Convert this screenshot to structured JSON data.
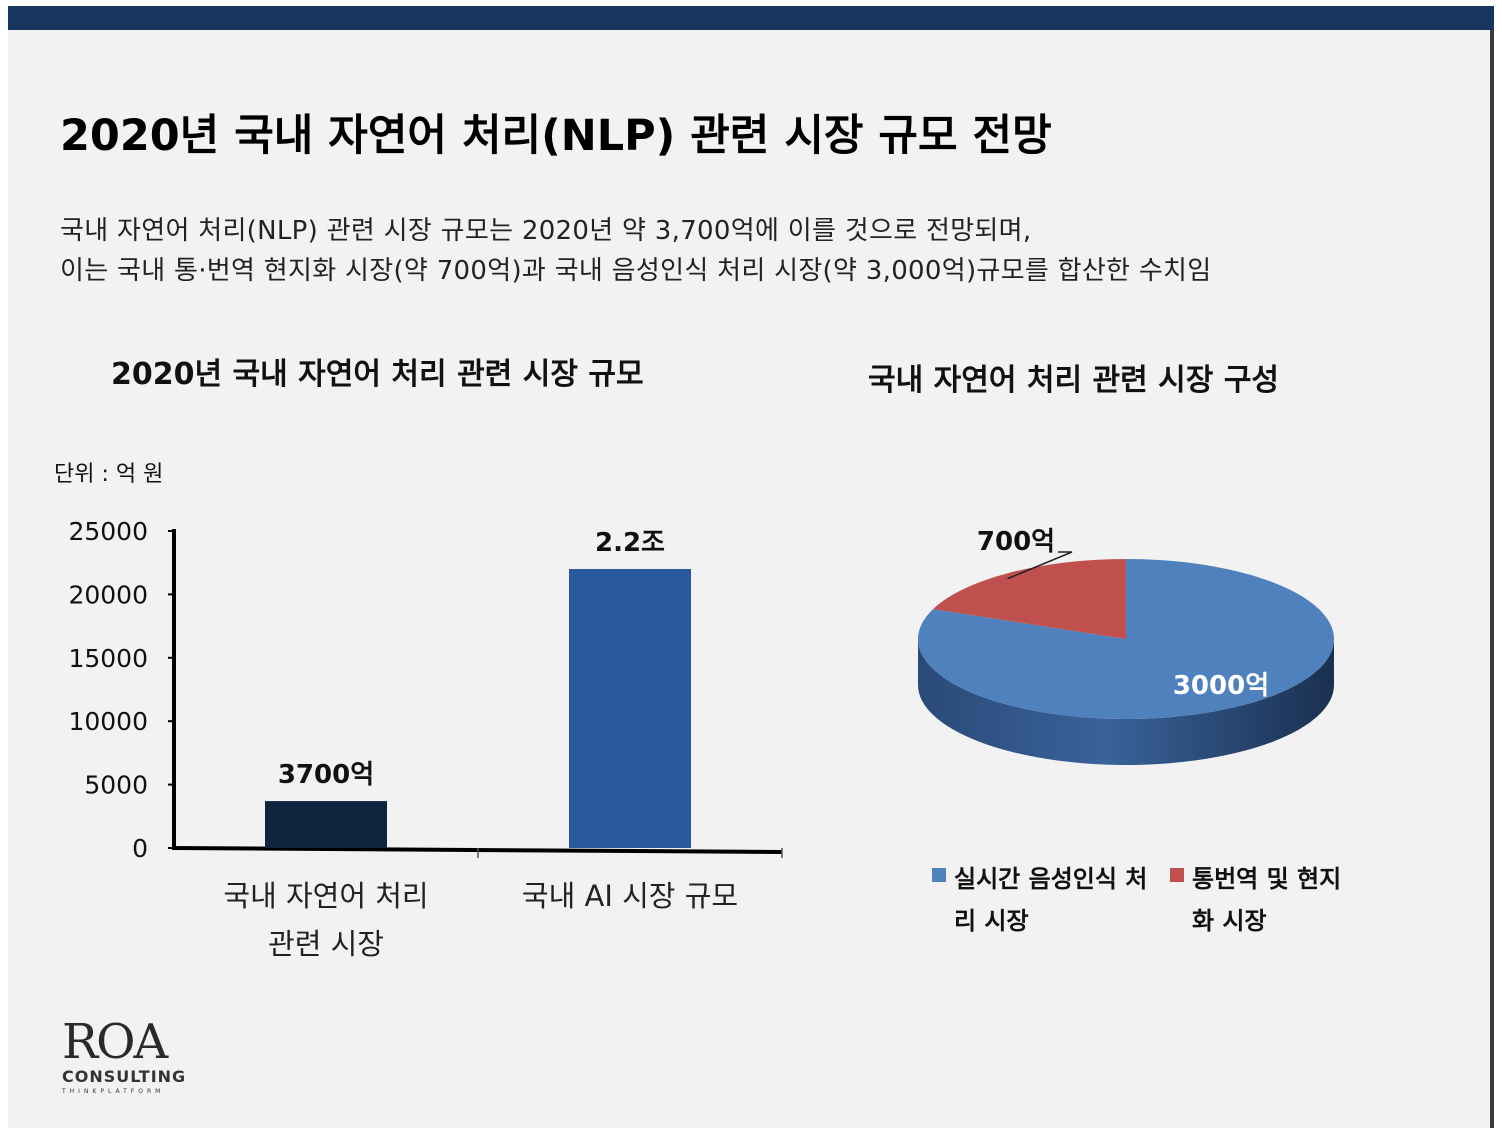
{
  "title": "2020년 국내 자연어 처리(NLP) 관련 시장 규모 전망",
  "description": [
    "국내 자연어 처리(NLP) 관련 시장 규모는 2020년 약 3,700억에 이를 것으로 전망되며,",
    "이는 국내 통·번역 현지화 시장(약 700억)과 국내 음성인식 처리 시장(약 3,000억)규모를 합산한 수치임"
  ],
  "unit_label": "단위 : 억 원",
  "colors": {
    "header_bar": "#17365d",
    "bar1": "#10243f",
    "bar2": "#27599b",
    "pie_voice": "#4f81bd",
    "pie_translation": "#c0504d"
  },
  "chart_data": [
    {
      "type": "bar",
      "title": "2020년 국내 자연어 처리 관련 시장 규모",
      "categories": [
        "국내 자연어 처리\n관련 시장",
        "국내 AI 시장 규모"
      ],
      "values": [
        3700,
        22000
      ],
      "data_labels": [
        "3700억",
        "2.2조"
      ],
      "ylim": [
        0,
        25000
      ],
      "yticks": [
        0,
        5000,
        10000,
        15000,
        20000,
        25000
      ],
      "grid": false
    },
    {
      "type": "pie",
      "title": "국내 자연어 처리 관련 시장 구성",
      "labels": [
        "실시간 음성인식 처리 시장",
        "통번역 및 현지화 시장"
      ],
      "values": [
        3000,
        700
      ],
      "data_labels": [
        "3000억",
        "700억"
      ],
      "legend": "bottom"
    }
  ],
  "logo": {
    "main": "ROA",
    "sub": "CONSULTING",
    "tag": "THINKPLATFORM"
  }
}
